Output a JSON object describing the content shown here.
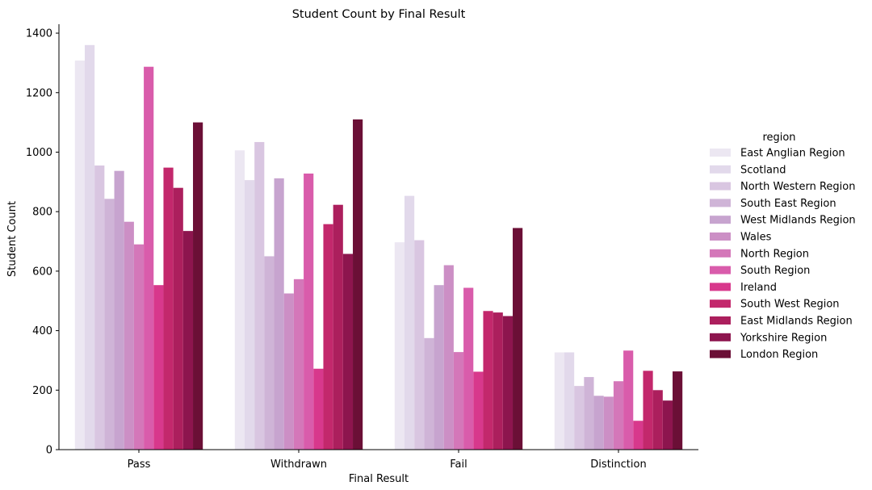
{
  "chart_data": {
    "type": "bar",
    "title": "Student Count by Final Result",
    "xlabel": "Final Result",
    "ylabel": "Student Count",
    "ylim": [
      0,
      1430
    ],
    "yticks": [
      0,
      200,
      400,
      600,
      800,
      1000,
      1200,
      1400
    ],
    "categories": [
      "Pass",
      "Withdrawn",
      "Fail",
      "Distinction"
    ],
    "legend_title": "region",
    "legend_position": "right",
    "grid": false,
    "series": [
      {
        "name": "East Anglian Region",
        "color": "#ece7f2",
        "values": [
          1308,
          1006,
          697,
          327
        ]
      },
      {
        "name": "Scotland",
        "color": "#e2d9eb",
        "values": [
          1360,
          906,
          853,
          327
        ]
      },
      {
        "name": "North Western Region",
        "color": "#d9c6e1",
        "values": [
          955,
          1034,
          704,
          214
        ]
      },
      {
        "name": "South East Region",
        "color": "#cfb4d7",
        "values": [
          843,
          650,
          375,
          244
        ]
      },
      {
        "name": "West Midlands Region",
        "color": "#c7a4cf",
        "values": [
          937,
          912,
          553,
          181
        ]
      },
      {
        "name": "Wales",
        "color": "#cc8fc5",
        "values": [
          766,
          525,
          620,
          178
        ]
      },
      {
        "name": "North Region",
        "color": "#d477b9",
        "values": [
          690,
          573,
          328,
          230
        ]
      },
      {
        "name": "South Region",
        "color": "#d95cab",
        "values": [
          1287,
          928,
          544,
          333
        ]
      },
      {
        "name": "Ireland",
        "color": "#d8388c",
        "values": [
          553,
          272,
          262,
          97
        ]
      },
      {
        "name": "South West Region",
        "color": "#c3286c",
        "values": [
          948,
          758,
          466,
          265
        ]
      },
      {
        "name": "East Midlands Region",
        "color": "#ac1f5d",
        "values": [
          880,
          823,
          461,
          200
        ]
      },
      {
        "name": "Yorkshire Region",
        "color": "#8d154e",
        "values": [
          735,
          658,
          449,
          165
        ]
      },
      {
        "name": "London Region",
        "color": "#6b0f36",
        "values": [
          1100,
          1110,
          745,
          263
        ]
      }
    ]
  }
}
